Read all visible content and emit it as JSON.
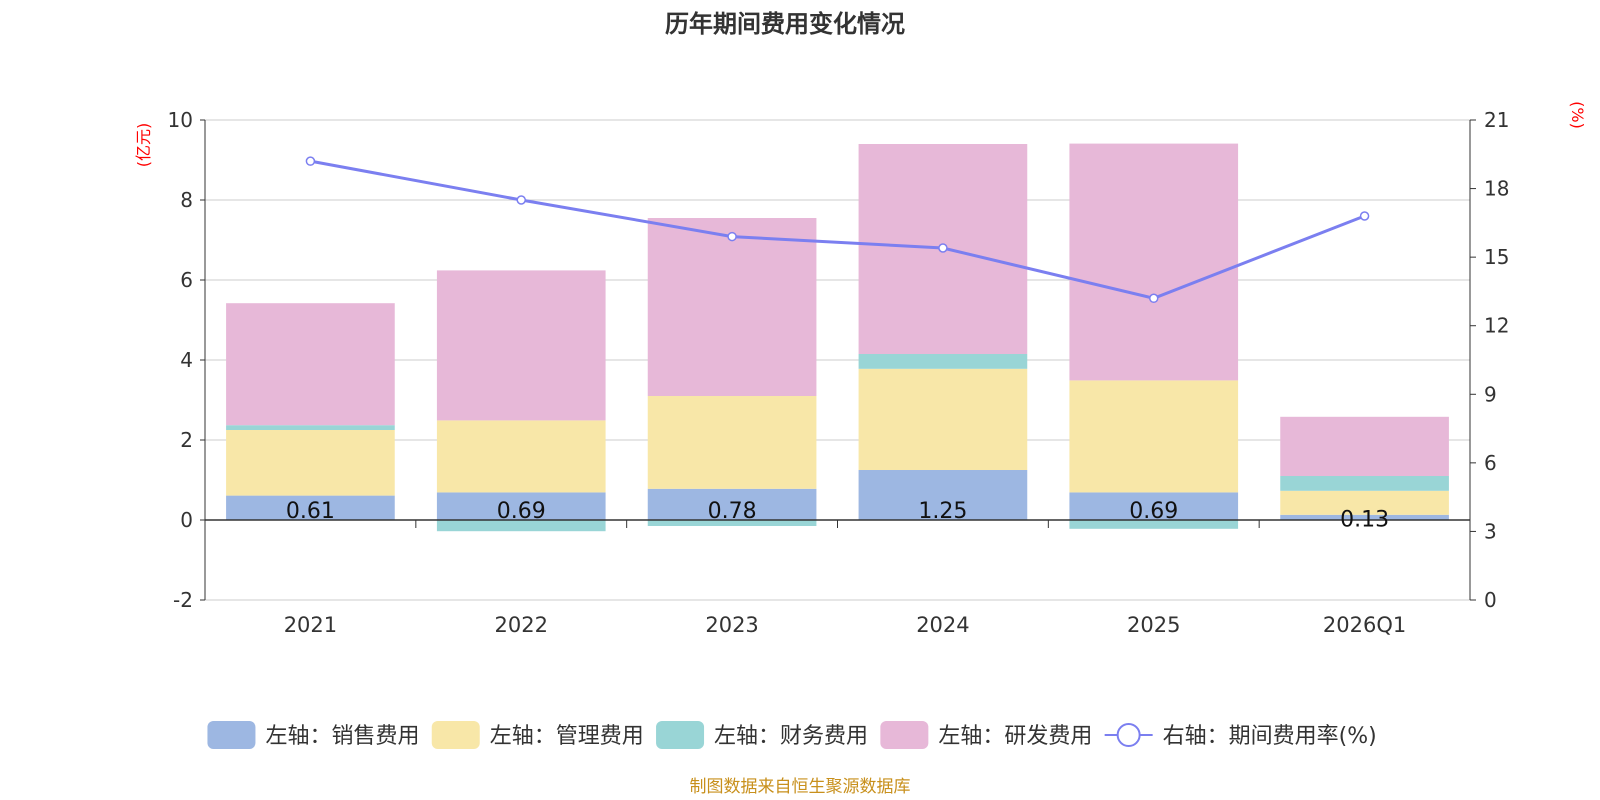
{
  "chart_data": {
    "type": "bar",
    "title": "历年期间费用变化情况",
    "categories": [
      "2021",
      "2022",
      "2023",
      "2024",
      "2025",
      "2026Q1"
    ],
    "left_axis": {
      "unit_label": "(亿元)",
      "min": -2,
      "max": 10,
      "ticks": [
        -2,
        0,
        2,
        4,
        6,
        8,
        10
      ]
    },
    "right_axis": {
      "unit_label": "(%)",
      "min": 0,
      "max": 21,
      "ticks": [
        0,
        3,
        6,
        9,
        12,
        15,
        18,
        21
      ]
    },
    "stacked_series": [
      {
        "name": "左轴：销售费用",
        "color": "#9db7e2",
        "values": [
          0.61,
          0.69,
          0.78,
          1.25,
          0.69,
          0.13
        ]
      },
      {
        "name": "左轴：管理费用",
        "color": "#f8e7a8",
        "values": [
          1.64,
          1.8,
          2.32,
          2.53,
          2.8,
          0.6
        ]
      },
      {
        "name": "左轴：财务费用",
        "color": "#99d5d6",
        "values": [
          0.12,
          -0.28,
          -0.15,
          0.37,
          -0.22,
          0.37
        ]
      },
      {
        "name": "左轴：研发费用",
        "color": "#e7b8d8",
        "values": [
          3.05,
          3.75,
          4.45,
          5.25,
          5.92,
          1.48
        ]
      }
    ],
    "bar_value_labels": [
      "0.61",
      "0.69",
      "0.78",
      "1.25",
      "0.69",
      "0.13"
    ],
    "line_series": {
      "name": "右轴：期间费用率(%)",
      "color": "#7b7ff0",
      "axis": "right",
      "values": [
        19.2,
        17.5,
        15.9,
        15.4,
        13.2,
        16.8
      ]
    },
    "grid": true,
    "legend_position": "bottom"
  },
  "footer": {
    "source": "制图数据来自恒生聚源数据库"
  }
}
